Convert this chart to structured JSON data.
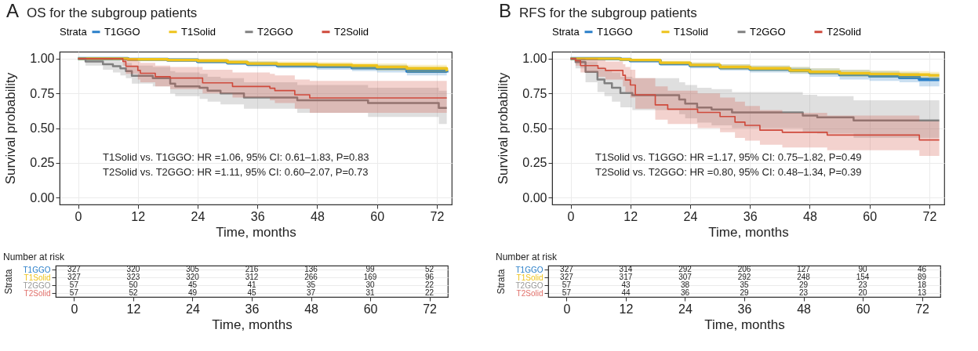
{
  "chart_data": [
    {
      "type": "step",
      "title": "A",
      "subtitle": "OS for the subgroup patients",
      "xlabel": "Time, months",
      "ylabel": "Survival probability",
      "legend_title": "Strata",
      "legend": "top",
      "grid": true,
      "xlim": [
        -3.7,
        75
      ],
      "xticks": [
        0,
        12,
        24,
        36,
        48,
        60,
        72
      ],
      "ylim": [
        -0.05,
        1.05
      ],
      "yticks": [
        {
          "value": 0,
          "label": "0.00"
        },
        {
          "value": 0.25,
          "label": "0.25"
        },
        {
          "value": 0.5,
          "label": "0.50"
        },
        {
          "value": 0.75,
          "label": "0.75"
        },
        {
          "value": 1,
          "label": "1.00"
        }
      ],
      "annotations": [
        "T1Solid vs. T1GGO: HR =1.06, 95% CI: 0.61–1.83, P=0.83",
        "T2Solid vs. T2GGO: HR =1.11, 95% CI: 0.60–2.07, P=0.73"
      ],
      "series": [
        {
          "name": "T1GGO",
          "color": "#2a7fc9",
          "x": [
            0,
            10,
            18,
            24,
            30,
            34,
            40,
            48,
            55,
            60,
            66,
            74
          ],
          "values": [
            1,
            0.995,
            0.99,
            0.98,
            0.97,
            0.96,
            0.95,
            0.945,
            0.935,
            0.93,
            0.91,
            0.9
          ],
          "lower": [
            1,
            0.99,
            0.98,
            0.965,
            0.955,
            0.94,
            0.93,
            0.92,
            0.91,
            0.9,
            0.88,
            0.86
          ],
          "upper": [
            1,
            1,
            1,
            0.995,
            0.99,
            0.98,
            0.97,
            0.965,
            0.96,
            0.955,
            0.94,
            0.93
          ]
        },
        {
          "name": "T1Solid",
          "color": "#eec31c",
          "x": [
            0,
            10,
            18,
            24,
            30,
            34,
            40,
            48,
            55,
            60,
            66,
            74
          ],
          "values": [
            1,
            0.995,
            0.99,
            0.985,
            0.975,
            0.965,
            0.96,
            0.955,
            0.95,
            0.94,
            0.93,
            0.91
          ],
          "lower": [
            1,
            0.99,
            0.98,
            0.97,
            0.96,
            0.95,
            0.94,
            0.935,
            0.925,
            0.915,
            0.9,
            0.88
          ],
          "upper": [
            1,
            1,
            1,
            1,
            0.99,
            0.985,
            0.98,
            0.975,
            0.97,
            0.965,
            0.955,
            0.94
          ]
        },
        {
          "name": "T2GGO",
          "color": "#808080",
          "x": [
            0,
            1.5,
            5,
            7,
            8.5,
            9.6,
            10.8,
            15,
            18.5,
            19.5,
            24.4,
            26,
            28.6,
            33.3,
            44,
            58.2,
            72.4,
            74
          ],
          "values": [
            1,
            0.98,
            0.96,
            0.945,
            0.93,
            0.91,
            0.877,
            0.86,
            0.82,
            0.8,
            0.79,
            0.77,
            0.75,
            0.72,
            0.7,
            0.68,
            0.645,
            0.645
          ],
          "lower": [
            1,
            0.95,
            0.92,
            0.9,
            0.88,
            0.86,
            0.82,
            0.8,
            0.75,
            0.73,
            0.71,
            0.69,
            0.67,
            0.64,
            0.61,
            0.58,
            0.53,
            0.53
          ],
          "upper": [
            1,
            1,
            1,
            0.99,
            0.98,
            0.97,
            0.95,
            0.94,
            0.91,
            0.9,
            0.89,
            0.87,
            0.86,
            0.83,
            0.81,
            0.79,
            0.77,
            0.77
          ]
        },
        {
          "name": "T2Solid",
          "color": "#cf4a3c",
          "x": [
            0,
            9,
            9.6,
            12,
            12.5,
            15.5,
            18.5,
            25,
            31,
            38.5,
            39.5,
            43.5,
            46.5,
            74
          ],
          "values": [
            1,
            0.98,
            0.945,
            0.915,
            0.895,
            0.87,
            0.86,
            0.826,
            0.8,
            0.787,
            0.77,
            0.74,
            0.717,
            0.717
          ],
          "lower": [
            1,
            0.95,
            0.89,
            0.85,
            0.83,
            0.8,
            0.78,
            0.75,
            0.72,
            0.7,
            0.68,
            0.64,
            0.61,
            0.6
          ],
          "upper": [
            1,
            1,
            1,
            0.98,
            0.97,
            0.95,
            0.94,
            0.92,
            0.9,
            0.89,
            0.88,
            0.85,
            0.84,
            0.84
          ]
        }
      ]
    },
    {
      "type": "heatmap",
      "title": "Number at risk",
      "xlabel": "Time, months",
      "ylabel": "Strata",
      "grid": true,
      "data_labels": true,
      "categories": [
        "0",
        "12",
        "24",
        "36",
        "48",
        "60",
        "72"
      ],
      "y_categories": [
        "T1GGO",
        "T1Solid",
        "T2GGO",
        "T2Solid"
      ],
      "colors": [
        "#2a7fc9",
        "#eec31c",
        "#999999",
        "#e0706a"
      ],
      "cells": [
        [
          327,
          320,
          305,
          216,
          136,
          99,
          52
        ],
        [
          327,
          323,
          320,
          312,
          266,
          169,
          96
        ],
        [
          57,
          50,
          45,
          41,
          35,
          30,
          22
        ],
        [
          57,
          52,
          49,
          45,
          37,
          31,
          22
        ]
      ]
    },
    {
      "type": "step",
      "title": "B",
      "subtitle": "RFS for the subgroup patients",
      "xlabel": "Time, months",
      "ylabel": "Survival probability",
      "legend_title": "Strata",
      "legend": "top",
      "grid": true,
      "xlim": [
        -3.7,
        75
      ],
      "xticks": [
        0,
        12,
        24,
        36,
        48,
        60,
        72
      ],
      "ylim": [
        -0.05,
        1.05
      ],
      "yticks": [
        {
          "value": 0,
          "label": "0.00"
        },
        {
          "value": 0.25,
          "label": "0.25"
        },
        {
          "value": 0.5,
          "label": "0.50"
        },
        {
          "value": 0.75,
          "label": "0.75"
        },
        {
          "value": 1,
          "label": "1.00"
        }
      ],
      "annotations": [
        "T1Solid vs. T1GGO: HR =1.17, 95% CI: 0.75–1.82, P=0.49",
        "T2Solid vs. T2GGO: HR =0.80, 95% CI: 0.48–1.34, P=0.39"
      ],
      "series": [
        {
          "name": "T1GGO",
          "color": "#2a7fc9",
          "x": [
            0,
            10,
            12,
            18,
            24,
            30,
            36,
            44,
            48,
            54,
            60,
            66,
            70,
            74
          ],
          "values": [
            1,
            0.995,
            0.985,
            0.965,
            0.95,
            0.935,
            0.925,
            0.915,
            0.9,
            0.885,
            0.875,
            0.865,
            0.85,
            0.85
          ],
          "lower": [
            1,
            0.99,
            0.975,
            0.95,
            0.93,
            0.915,
            0.9,
            0.89,
            0.87,
            0.85,
            0.84,
            0.83,
            0.8,
            0.8
          ],
          "upper": [
            1,
            1,
            0.995,
            0.98,
            0.97,
            0.96,
            0.95,
            0.94,
            0.93,
            0.92,
            0.91,
            0.9,
            0.89,
            0.89
          ]
        },
        {
          "name": "T1Solid",
          "color": "#eec31c",
          "x": [
            0,
            10,
            12,
            18,
            24,
            30,
            36,
            44,
            48,
            54,
            60,
            66,
            72,
            74
          ],
          "values": [
            1,
            0.995,
            0.99,
            0.97,
            0.955,
            0.94,
            0.93,
            0.915,
            0.905,
            0.895,
            0.89,
            0.885,
            0.88,
            0.88
          ],
          "lower": [
            1,
            0.99,
            0.98,
            0.955,
            0.94,
            0.92,
            0.91,
            0.895,
            0.885,
            0.87,
            0.865,
            0.86,
            0.85,
            0.85
          ],
          "upper": [
            1,
            1,
            1,
            0.985,
            0.975,
            0.96,
            0.95,
            0.94,
            0.93,
            0.92,
            0.915,
            0.91,
            0.905,
            0.905
          ]
        },
        {
          "name": "T2GGO",
          "color": "#808080",
          "x": [
            0,
            1,
            3,
            5.4,
            6.8,
            8.3,
            10,
            12.4,
            21.8,
            23,
            25.4,
            28.3,
            32.4,
            46.6,
            49.5,
            56.8,
            74
          ],
          "values": [
            1,
            0.975,
            0.905,
            0.85,
            0.823,
            0.79,
            0.753,
            0.737,
            0.706,
            0.676,
            0.648,
            0.634,
            0.613,
            0.59,
            0.578,
            0.555,
            0.555
          ],
          "lower": [
            1,
            0.93,
            0.83,
            0.76,
            0.73,
            0.69,
            0.65,
            0.63,
            0.6,
            0.57,
            0.54,
            0.52,
            0.5,
            0.47,
            0.46,
            0.43,
            0.43
          ],
          "upper": [
            1,
            1,
            0.98,
            0.94,
            0.92,
            0.9,
            0.87,
            0.86,
            0.83,
            0.81,
            0.79,
            0.78,
            0.76,
            0.74,
            0.73,
            0.7,
            0.7
          ]
        },
        {
          "name": "T2Solid",
          "color": "#cf4a3c",
          "x": [
            0,
            1,
            2,
            5.5,
            7,
            10.5,
            11,
            12,
            13,
            17,
            19.5,
            25.5,
            30,
            33,
            35,
            38,
            42.5,
            51.5,
            70,
            74
          ],
          "values": [
            1,
            0.985,
            0.95,
            0.93,
            0.915,
            0.88,
            0.846,
            0.81,
            0.74,
            0.667,
            0.636,
            0.613,
            0.583,
            0.543,
            0.52,
            0.485,
            0.47,
            0.45,
            0.415,
            0.415
          ],
          "lower": [
            1,
            0.95,
            0.9,
            0.87,
            0.85,
            0.8,
            0.76,
            0.72,
            0.64,
            0.56,
            0.53,
            0.5,
            0.47,
            0.43,
            0.41,
            0.38,
            0.36,
            0.34,
            0.3,
            0.3
          ],
          "upper": [
            1,
            1,
            1,
            0.99,
            0.98,
            0.96,
            0.94,
            0.92,
            0.86,
            0.8,
            0.77,
            0.75,
            0.72,
            0.69,
            0.66,
            0.63,
            0.61,
            0.59,
            0.55,
            0.55
          ]
        }
      ]
    },
    {
      "type": "heatmap",
      "title": "Number at risk",
      "xlabel": "Time, months",
      "ylabel": "Strata",
      "grid": true,
      "data_labels": true,
      "categories": [
        "0",
        "12",
        "24",
        "36",
        "48",
        "60",
        "72"
      ],
      "y_categories": [
        "T1GGO",
        "T1Solid",
        "T2GGO",
        "T2Solid"
      ],
      "colors": [
        "#2a7fc9",
        "#eec31c",
        "#999999",
        "#e0706a"
      ],
      "cells": [
        [
          327,
          314,
          292,
          206,
          127,
          90,
          46
        ],
        [
          327,
          317,
          307,
          292,
          248,
          154,
          89
        ],
        [
          57,
          43,
          38,
          35,
          29,
          23,
          18
        ],
        [
          57,
          44,
          36,
          29,
          23,
          20,
          13
        ]
      ]
    }
  ]
}
